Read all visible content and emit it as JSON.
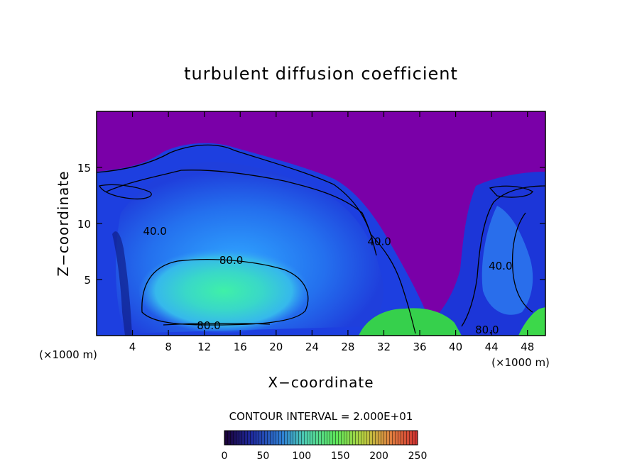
{
  "chart_data": {
    "type": "heatmap",
    "title": "turbulent diffusion coefficient",
    "xlabel": "X−coordinate",
    "ylabel": "Z−coordinate",
    "x_unit_left": "(×1000 m)",
    "x_unit_right": "(×1000 m)",
    "x_ticks": [
      4,
      8,
      12,
      16,
      20,
      24,
      28,
      32,
      36,
      40,
      44,
      48
    ],
    "y_ticks": [
      5,
      10,
      15
    ],
    "xlim": [
      0,
      50
    ],
    "ylim": [
      0,
      20
    ],
    "grid": false,
    "contour_interval_text": "CONTOUR INTERVAL = 2.000E+01",
    "contour_labels": [
      {
        "text": "40.0",
        "x": 6.5,
        "z": 9.3
      },
      {
        "text": "80.0",
        "x": 15,
        "z": 6.7
      },
      {
        "text": "80.0",
        "x": 12.5,
        "z": 0.9
      },
      {
        "text": "40.0",
        "x": 31.5,
        "z": 8.4
      },
      {
        "text": "40.0",
        "x": 45,
        "z": 6.2
      },
      {
        "text": "80.0",
        "x": 43.5,
        "z": 0.5
      }
    ],
    "colorbar": {
      "min": 0,
      "max": 250,
      "ticks": [
        0,
        50,
        100,
        150,
        200,
        250
      ],
      "colors": [
        "#1a0033",
        "#1e2a9e",
        "#2f7fd4",
        "#4fd0b0",
        "#5ee65a",
        "#b8d040",
        "#e08040",
        "#d03030"
      ]
    },
    "colors": {
      "background_field": "#7a00a8",
      "low": "#1d2bd8",
      "mid": "#3aa0ff",
      "high": "#40ecb8",
      "green": "#3cd84a"
    }
  }
}
